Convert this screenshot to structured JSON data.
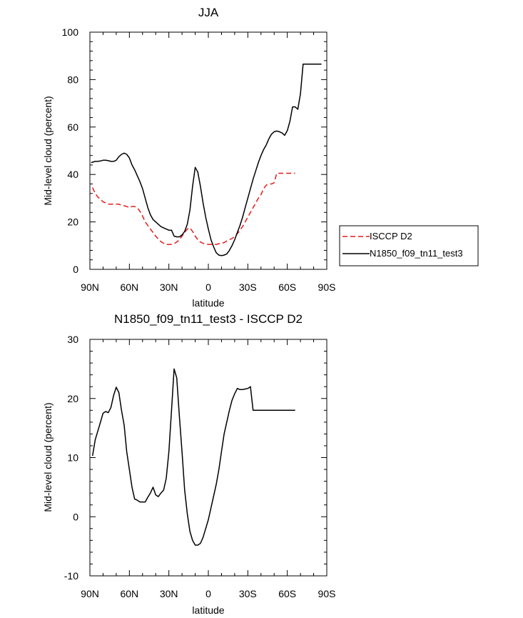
{
  "chart_data": [
    {
      "type": "line",
      "title": "JJA",
      "xlabel": "latitude",
      "ylabel": "Mid-level cloud (percent)",
      "xlim": [
        90,
        -90
      ],
      "ylim": [
        0,
        100
      ],
      "x_ticks": [
        90,
        60,
        30,
        0,
        -30,
        -60,
        -90
      ],
      "x_tick_labels": [
        "90N",
        "60N",
        "30N",
        "0",
        "30S",
        "60S",
        "90S"
      ],
      "y_ticks": [
        0,
        20,
        40,
        60,
        80,
        100
      ],
      "y_tick_labels": [
        "0",
        "20",
        "40",
        "60",
        "80",
        "100"
      ],
      "legend_position": "right",
      "series": [
        {
          "name": "ISCCP D2",
          "color": "#e41a1c",
          "dash": "dashed",
          "x": [
            88,
            86,
            84,
            82,
            80,
            78,
            76,
            74,
            72,
            70,
            68,
            66,
            64,
            62,
            60,
            58,
            56,
            54,
            52,
            50,
            48,
            46,
            44,
            42,
            40,
            38,
            36,
            34,
            32,
            30,
            28,
            26,
            24,
            22,
            20,
            18,
            16,
            14,
            12,
            10,
            8,
            6,
            4,
            2,
            0,
            -2,
            -4,
            -6,
            -8,
            -10,
            -12,
            -14,
            -16,
            -18,
            -20,
            -22,
            -24,
            -26,
            -28,
            -30,
            -32,
            -34,
            -36,
            -38,
            -40,
            -42,
            -44,
            -46,
            -48,
            -50,
            -52,
            -54,
            -56,
            -58,
            -60,
            -62,
            -64,
            -66
          ],
          "y": [
            34.5,
            32,
            30.5,
            29.5,
            28.5,
            28,
            27.5,
            27.5,
            27.5,
            27.5,
            27.5,
            27,
            26.8,
            26.5,
            26,
            26.5,
            26.5,
            26,
            24.5,
            22.5,
            20,
            18.5,
            17,
            15.5,
            14,
            12.8,
            11.7,
            11,
            10.5,
            10.5,
            10.5,
            10.8,
            11.5,
            12.5,
            14,
            15.5,
            17,
            17.5,
            16,
            14,
            12.5,
            11.5,
            11,
            10.7,
            10.5,
            10.5,
            10.5,
            10.5,
            10.8,
            11,
            11.3,
            12,
            12.5,
            13,
            13.8,
            15,
            16.5,
            18,
            20,
            22,
            24,
            26,
            28,
            30,
            31.5,
            34,
            35.5,
            36,
            36,
            36.5,
            40.5,
            40.5,
            40.5,
            40.5,
            40.5,
            40.5,
            40.5,
            40.5
          ]
        },
        {
          "name": "N1850_f09_tn11_test3",
          "color": "#000000",
          "dash": "solid",
          "x": [
            89,
            86,
            84,
            82,
            80,
            78,
            76,
            74,
            72,
            70,
            68,
            66,
            64,
            62,
            60,
            58,
            56,
            54,
            52,
            50,
            48,
            46,
            44,
            42,
            40,
            38,
            36,
            34,
            32,
            30,
            28,
            26,
            24,
            22,
            20,
            18,
            16,
            14,
            12,
            10,
            8,
            6,
            4,
            2,
            0,
            -2,
            -4,
            -6,
            -8,
            -10,
            -12,
            -14,
            -16,
            -18,
            -20,
            -22,
            -24,
            -26,
            -28,
            -30,
            -32,
            -34,
            -36,
            -38,
            -40,
            -42,
            -44,
            -46,
            -48,
            -50,
            -52,
            -54,
            -56,
            -58,
            -60,
            -62,
            -64,
            -66,
            -68,
            -70,
            -72,
            -74,
            -76,
            -78,
            -80,
            -82,
            -84,
            -86
          ],
          "y": [
            45,
            45.5,
            45.5,
            45.7,
            46,
            46,
            45.8,
            45.5,
            45.5,
            46,
            47.5,
            48.5,
            49,
            48.5,
            47,
            44,
            42,
            39.5,
            37,
            34,
            30,
            26,
            23,
            21,
            20,
            19,
            18,
            17.5,
            17,
            16.5,
            16.5,
            14,
            13.7,
            13.7,
            14.5,
            16,
            19,
            25,
            35,
            43,
            41,
            35,
            28,
            22,
            17,
            12.5,
            9.5,
            7,
            6,
            5.8,
            6,
            6.5,
            8,
            10,
            12.5,
            15.5,
            18.5,
            22,
            26,
            30,
            34,
            38,
            41.5,
            45,
            48,
            50.5,
            52.5,
            55,
            57,
            58,
            58.3,
            58,
            57.5,
            56.5,
            58.5,
            62.5,
            68.5,
            68.5,
            67.5,
            74,
            86.5,
            86.5,
            86.5,
            86.5,
            86.5,
            86.5,
            86.5,
            86.5
          ]
        }
      ]
    },
    {
      "type": "line",
      "title": "N1850_f09_tn11_test3 - ISCCP D2",
      "xlabel": "latitude",
      "ylabel": "Mid-level cloud (percent)",
      "xlim": [
        90,
        -90
      ],
      "ylim": [
        -10,
        30
      ],
      "x_ticks": [
        90,
        60,
        30,
        0,
        -30,
        -60,
        -90
      ],
      "x_tick_labels": [
        "90N",
        "60N",
        "30N",
        "0",
        "30S",
        "60S",
        "90S"
      ],
      "y_ticks": [
        -10,
        0,
        10,
        20,
        30
      ],
      "y_tick_labels": [
        "-10",
        "0",
        "10",
        "20",
        "30"
      ],
      "series": [
        {
          "color": "#000000",
          "dash": "solid",
          "x": [
            88,
            86,
            84,
            82,
            80,
            78,
            76,
            74,
            72,
            70,
            68,
            66,
            64,
            62,
            60,
            58,
            56,
            54,
            52,
            50,
            48,
            46,
            44,
            42,
            40,
            38,
            36,
            34,
            32,
            30,
            28,
            26,
            24,
            22,
            20,
            18,
            16,
            14,
            12,
            10,
            8,
            6,
            4,
            2,
            0,
            -2,
            -4,
            -6,
            -8,
            -10,
            -12,
            -14,
            -16,
            -18,
            -20,
            -22,
            -24,
            -26,
            -28,
            -30,
            -32,
            -34,
            -36,
            -38,
            -40,
            -42,
            -44,
            -46,
            -48,
            -50,
            -52,
            -54,
            -56,
            -58,
            -60,
            -62,
            -64,
            -66
          ],
          "y": [
            10.3,
            13,
            14.5,
            16,
            17.5,
            17.8,
            17.6,
            18.5,
            20.5,
            21.9,
            21,
            18,
            15.5,
            11,
            8,
            5,
            3,
            2.8,
            2.5,
            2.5,
            2.5,
            3.3,
            4,
            5,
            3.7,
            3.4,
            4,
            4.5,
            6.5,
            11,
            18,
            25,
            23.5,
            17,
            11,
            4.5,
            0.5,
            -2.5,
            -4,
            -4.8,
            -4.8,
            -4.5,
            -3.5,
            -2,
            -0.5,
            1.5,
            3.5,
            5.5,
            8,
            11,
            14,
            16,
            18,
            19.7,
            20.8,
            21.7,
            21.5,
            21.5,
            21.6,
            21.7,
            22,
            18,
            18,
            18,
            18,
            18,
            18,
            18,
            18,
            18,
            18,
            18,
            18,
            18,
            18,
            18,
            18,
            18
          ]
        }
      ]
    }
  ]
}
